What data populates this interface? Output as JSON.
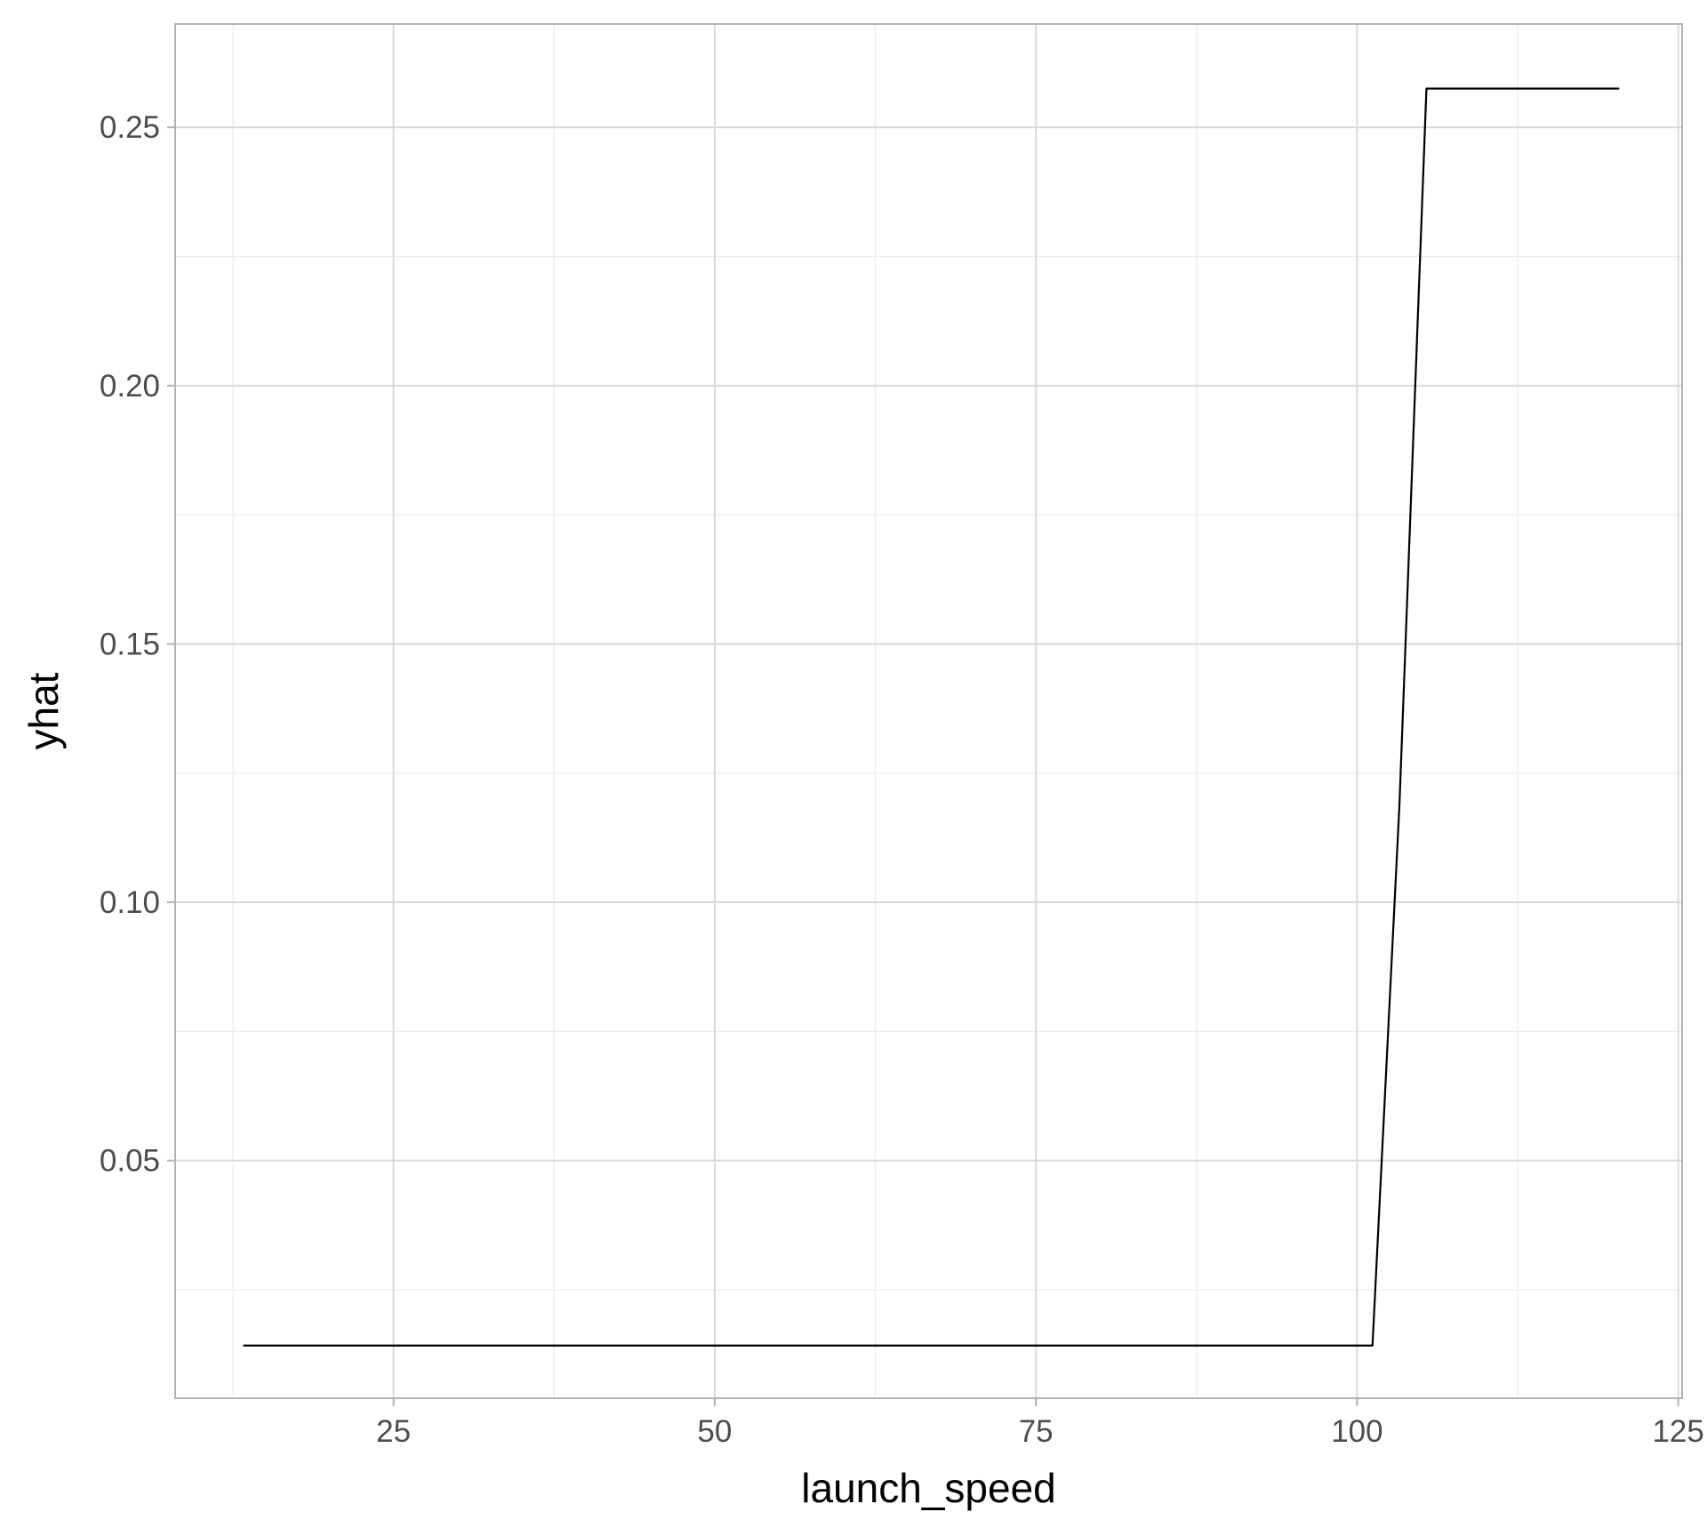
{
  "chart_data": {
    "type": "line",
    "title": "",
    "xlabel": "launch_speed",
    "ylabel": "yhat",
    "xlim": [
      8.0,
      125.3
    ],
    "ylim": [
      0.004,
      0.27
    ],
    "x_ticks": [
      25,
      50,
      75,
      100,
      125
    ],
    "x_tick_labels": [
      "25",
      "50",
      "75",
      "100",
      "125"
    ],
    "x_minor_ticks": [
      12.5,
      37.5,
      62.5,
      87.5,
      112.5
    ],
    "y_ticks": [
      0.05,
      0.1,
      0.15,
      0.2,
      0.25
    ],
    "y_tick_labels": [
      "0.05",
      "0.10",
      "0.15",
      "0.20",
      "0.25"
    ],
    "y_minor_ticks": [
      0.025,
      0.075,
      0.125,
      0.175,
      0.225
    ],
    "grid": true,
    "series": [
      {
        "color": "#000000",
        "x": [
          13.3,
          101.2,
          103.3,
          105.4,
          120.4
        ],
        "y": [
          0.0142,
          0.0142,
          0.119,
          0.2575,
          0.2575
        ]
      }
    ]
  },
  "style": {
    "background": "#ffffff",
    "major_grid_color": "#d9d9d9",
    "minor_grid_color": "#ebebeb",
    "panel_border_color": "#b3b3b3",
    "tick_color": "#b3b3b3",
    "line_color": "#000000"
  }
}
